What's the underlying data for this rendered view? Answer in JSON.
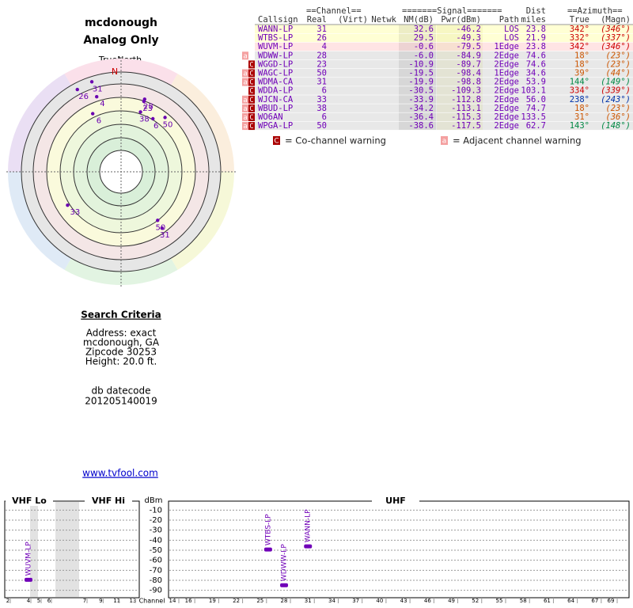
{
  "header": {
    "title": "mcdonough",
    "subtitle": "Analog Only",
    "north_label": "TrueNorth",
    "north_marker": "N"
  },
  "table": {
    "group_headers": [
      "==Channel==",
      "=======Signal=======",
      "Dist",
      "==Azimuth=="
    ],
    "columns": [
      "Callsign",
      "Real",
      "(Virt)",
      "Netwk",
      "NM(dB)",
      "Pwr(dBm)",
      "Path",
      "miles",
      "True",
      "(Magn)"
    ],
    "rows": [
      {
        "flags": [],
        "callsign": "WANN-LP",
        "real": 31,
        "nm": 32.6,
        "nm_label": "32.6",
        "pwr": "-46.2",
        "path": "LOS",
        "dist": "23.8",
        "az": 342,
        "az_label": "342°",
        "magn": "(346°)",
        "az_color": "#cc0000",
        "row_color": "#ffffd4"
      },
      {
        "flags": [],
        "callsign": "WTBS-LP",
        "real": 26,
        "nm": 29.5,
        "nm_label": "29.5",
        "pwr": "-49.3",
        "path": "LOS",
        "dist": "21.9",
        "az": 332,
        "az_label": "332°",
        "magn": "(337°)",
        "az_color": "#cc0000",
        "row_color": "#ffffd4"
      },
      {
        "flags": [],
        "callsign": "WUVM-LP",
        "real": 4,
        "nm": -0.6,
        "nm_label": "-0.6",
        "pwr": "-79.5",
        "path": "1Edge",
        "dist": "23.8",
        "az": 342,
        "az_label": "342°",
        "magn": "(346°)",
        "az_color": "#cc0000",
        "row_color": "#ffe4e4"
      },
      {
        "flags": [
          "a"
        ],
        "callsign": "WDWW-LP",
        "real": 28,
        "nm": -6.0,
        "nm_label": "-6.0",
        "pwr": "-84.9",
        "path": "2Edge",
        "dist": "74.6",
        "az": 18,
        "az_label": "18°",
        "magn": "(23°)",
        "az_color": "#cc5500",
        "row_color": "#e8e8e8"
      },
      {
        "flags": [
          "C"
        ],
        "callsign": "WGGD-LP",
        "real": 23,
        "nm": -10.9,
        "nm_label": "-10.9",
        "pwr": "-89.7",
        "path": "2Edge",
        "dist": "74.6",
        "az": 18,
        "az_label": "18°",
        "magn": "(23°)",
        "az_color": "#cc5500",
        "row_color": "#e8e8e8"
      },
      {
        "flags": [
          "a",
          "C"
        ],
        "callsign": "WAGC-LP",
        "real": 50,
        "nm": -19.5,
        "nm_label": "-19.5",
        "pwr": "-98.4",
        "path": "1Edge",
        "dist": "34.6",
        "az": 39,
        "az_label": "39°",
        "magn": "(44°)",
        "az_color": "#cc5500",
        "row_color": "#e8e8e8"
      },
      {
        "flags": [
          "a",
          "C"
        ],
        "callsign": "WDMA-CA",
        "real": 31,
        "nm": -19.9,
        "nm_label": "-19.9",
        "pwr": "-98.8",
        "path": "2Edge",
        "dist": "53.9",
        "az": 144,
        "az_label": "144°",
        "magn": "(149°)",
        "az_color": "#008844",
        "row_color": "#e8e8e8"
      },
      {
        "flags": [
          "C"
        ],
        "callsign": "WDDA-LP",
        "real": 6,
        "nm": -30.5,
        "nm_label": "-30.5",
        "pwr": "-109.3",
        "path": "2Edge",
        "dist": "103.1",
        "az": 334,
        "az_label": "334°",
        "magn": "(339°)",
        "az_color": "#cc0000",
        "row_color": "#e8e8e8"
      },
      {
        "flags": [
          "a",
          "C"
        ],
        "callsign": "WJCN-CA",
        "real": 33,
        "nm": -33.9,
        "nm_label": "-33.9",
        "pwr": "-112.8",
        "path": "2Edge",
        "dist": "56.0",
        "az": 238,
        "az_label": "238°",
        "magn": "(243°)",
        "az_color": "#0033aa",
        "row_color": "#e8e8e8"
      },
      {
        "flags": [
          "a",
          "C"
        ],
        "callsign": "WBUD-LP",
        "real": 38,
        "nm": -34.2,
        "nm_label": "-34.2",
        "pwr": "-113.1",
        "path": "2Edge",
        "dist": "74.7",
        "az": 18,
        "az_label": "18°",
        "magn": "(23°)",
        "az_color": "#cc5500",
        "row_color": "#e8e8e8"
      },
      {
        "flags": [
          "a",
          "C"
        ],
        "callsign": "WO6AN",
        "real": 6,
        "nm": -36.4,
        "nm_label": "-36.4",
        "pwr": "-115.3",
        "path": "2Edge",
        "dist": "133.5",
        "az": 31,
        "az_label": "31°",
        "magn": "(36°)",
        "az_color": "#cc5500",
        "row_color": "#e8e8e8"
      },
      {
        "flags": [
          "a",
          "C"
        ],
        "callsign": "WPGA-LP",
        "real": 50,
        "nm": -38.6,
        "nm_label": "-38.6",
        "pwr": "-117.5",
        "path": "2Edge",
        "dist": "62.7",
        "az": 143,
        "az_label": "143°",
        "magn": "(148°)",
        "az_color": "#008844",
        "row_color": "#e8e8e8"
      }
    ]
  },
  "legend": {
    "co_flag": "C",
    "co_text": "= Co-channel warning",
    "adj_flag": "a",
    "adj_text": "= Adjacent channel warning"
  },
  "search": {
    "heading": "Search Criteria",
    "lines": [
      "Address: exact",
      "mcdonough, GA",
      "Zipcode 30253",
      "Height: 20.0 ft."
    ],
    "db_heading": "db datecode",
    "db_value": "201205140019"
  },
  "link": "www.tvfool.com",
  "chart_data": {
    "type": "bar",
    "y_label": "dBm",
    "x_label": "Channel",
    "bands": [
      "VHF Lo",
      "VHF Hi",
      "UHF"
    ],
    "ylim": [
      -5,
      -95
    ],
    "yticks": [
      -10,
      -20,
      -30,
      -40,
      -50,
      -60,
      -70,
      -80,
      -90
    ],
    "vhf_lo_xlim": [
      2,
      6
    ],
    "vhf_hi_xlim": [
      7,
      13
    ],
    "uhf_xlim": [
      14,
      69
    ],
    "vhf_xticks": [
      2,
      4,
      5,
      6,
      7,
      9,
      11,
      13
    ],
    "uhf_xticks": [
      14,
      16,
      19,
      22,
      25,
      28,
      31,
      34,
      37,
      40,
      43,
      46,
      49,
      52,
      55,
      58,
      61,
      64,
      67,
      69
    ],
    "x": [
      4,
      26,
      28,
      31
    ],
    "values": [
      -79.5,
      -49.3,
      -84.9,
      -46.2
    ],
    "labels": [
      "WUVM-LP",
      "WTBS-LP",
      "WDWW-LP",
      "WANN-LP"
    ],
    "color": "#7000b8",
    "grid": true
  }
}
